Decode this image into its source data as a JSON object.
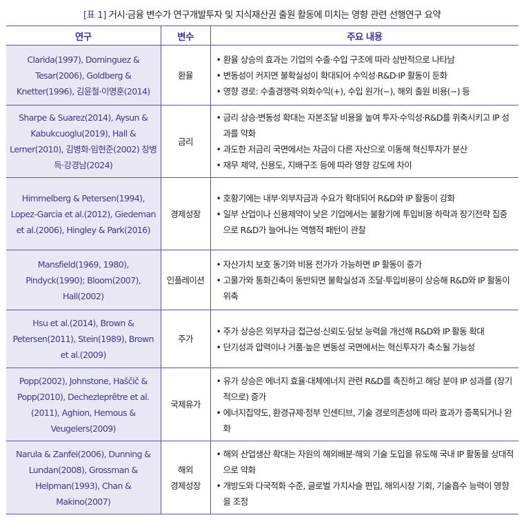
{
  "title": {
    "tag": "[표 1]",
    "text": "거시·금융 변수가 연구개발투자 및 지식재산권 출원 활동에 미치는 영향 관련 선행연구 요약"
  },
  "headers": [
    "연구",
    "변수",
    "주요 내용"
  ],
  "rows": [
    {
      "study": "Clarida(1997), Dominguez & Tesar(2006), Goldberg & Knetter(1996), 김윤철·이명훈(2014)",
      "variable": "환율",
      "points": [
        "환율 상승의 효과는 기업의 수출·수입 구조에 따라 상반적으로 나타남",
        "변동성이 커지면 불확실성이 확대되어 수익성·R&D·IP 활동이 둔화",
        "영향 경로: 수출경쟁력·외화수익(+), 수입 원가(−), 해외 출원 비용(−) 등"
      ]
    },
    {
      "study": "Sharpe & Suarez(2014), Aysun & Kabukcuoglu(2019), Hall & Lerner(2010), 김병화·임현준(2002) 장병득·강경남(2024)",
      "variable": "금리",
      "points": [
        "금리 상승·변동성 확대는 자본조달 비용을 높여 투자·수익성·R&D를 위축시키고 IP 성과를 약화",
        "과도한 저금리 국면에서는 자금이 다른 자산으로 이동해 혁신투자가 분산",
        "재무 제약, 신용도, 지배구조 등에 따라 영향 강도에 차이"
      ]
    },
    {
      "study": "Himmelberg & Petersen(1994), Lopez-Garcia et al.(2012), Giedeman et al.(2006), Hingley & Park(2016)",
      "variable": "경제성장",
      "points": [
        "호황기에는 내부·외부자금과 수요가 확대되어 R&D와 IP 활동이 강화",
        "일부 산업이나 신용제약이 낮은 기업에서는 불황기에 투입비용 하락과 장기전략 집중으로 R&D가 늘어나는 역행적 패턴이 관찰"
      ]
    },
    {
      "study": "Mansfield(1969, 1980), Pindyck(1990); Bloom(2007), Hall(2002)",
      "variable": "인플레이션",
      "points": [
        "자산가치 보호 동기와 비용 전가가 가능하면 IP 활동이 증가",
        "고물가와 통화긴축이 동반되면 불확실성과 조달·투입비용이 상승해 R&D와 IP 활동이 위축"
      ]
    },
    {
      "study": "Hsu et al.(2014), Brown & Petersen(2011), Stein(1989), Brown et al.(2009)",
      "variable": "주가",
      "points": [
        "주가 상승은 외부자금 접근성·신뢰도·담보 능력을 개선해 R&D와 IP 활동 확대",
        "단기성과 압력이나 거품·높은 변동성 국면에서는 혁신투자가 축소될 가능성"
      ]
    },
    {
      "study": "Popp(2002), Johnstone, Haščič & Popp(2010), Dechezleprêtre et al.(2011), Aghion, Hemous & Veugelers(2009)",
      "variable": "국제유가",
      "points": [
        "유가 상승은 에너지 효율·대체에너지 관련 R&D를 촉진하고 해당 분야 IP 성과를 (장기적으로) 증가",
        "에너지집약도, 환경규제·정부 인센티브, 기술 경로의존성에 따라 효과가 증폭되거나 완화"
      ]
    },
    {
      "study": "Narula & Zanfei(2006), Dunning & Lundan(2008), Grossman & Helpman(1993), Chan & Makino(2007)",
      "variable": "해외\n경제성장",
      "points": [
        "해외 산업생산 확대는 자원의 해외배분·해외 기술 도입을 유도해 국내 IP 활동을 상대적으로 약화",
        "개방도와 다국적화 수준, 글로벌 가치사슬 편입, 해외시장 기회, 기술흡수 능력이 영향을 조정"
      ]
    }
  ],
  "colors": {
    "accent": "#3d3891",
    "line": "#5c52a3",
    "study_bg": "#e8e7f3"
  }
}
